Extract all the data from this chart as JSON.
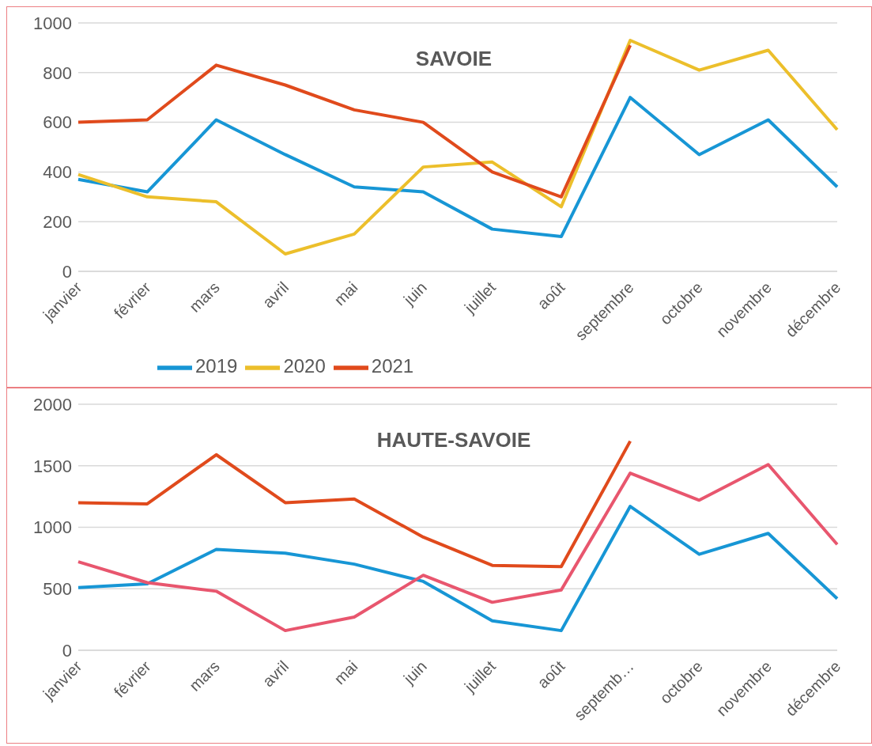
{
  "chart_data": [
    {
      "type": "line",
      "title": "SAVOIE",
      "categories": [
        "janvier",
        "février",
        "mars",
        "avril",
        "mai",
        "juin",
        "juillet",
        "août",
        "septembre",
        "octobre",
        "novembre",
        "décembre"
      ],
      "series": [
        {
          "name": "2019",
          "color": "#1796d5",
          "values": [
            370,
            320,
            610,
            470,
            340,
            320,
            170,
            140,
            700,
            470,
            610,
            340
          ]
        },
        {
          "name": "2020",
          "color": "#ecbf2b",
          "values": [
            390,
            300,
            280,
            70,
            150,
            420,
            440,
            260,
            930,
            810,
            890,
            570
          ]
        },
        {
          "name": "2021",
          "color": "#e04a1c",
          "values": [
            600,
            610,
            830,
            750,
            650,
            600,
            400,
            300,
            910,
            null,
            null,
            null
          ]
        }
      ],
      "ylim": [
        0,
        1000
      ],
      "yticks": [
        0,
        200,
        400,
        600,
        800,
        1000
      ],
      "grid": "y",
      "legend": "bottom"
    },
    {
      "type": "line",
      "title": "HAUTE-SAVOIE",
      "categories": [
        "janvier",
        "février",
        "mars",
        "avril",
        "mai",
        "juin",
        "juillet",
        "août",
        "septemb…",
        "octobre",
        "novembre",
        "décembre"
      ],
      "series": [
        {
          "color": "#1796d5",
          "values": [
            510,
            540,
            820,
            790,
            700,
            560,
            240,
            160,
            1170,
            780,
            950,
            420
          ]
        },
        {
          "color": "#e8566e",
          "values": [
            720,
            550,
            480,
            160,
            270,
            610,
            390,
            490,
            1440,
            1220,
            1510,
            860
          ]
        },
        {
          "color": "#e04a1c",
          "values": [
            1200,
            1190,
            1590,
            1200,
            1230,
            920,
            690,
            680,
            1700,
            null,
            null,
            null
          ]
        }
      ],
      "ylim": [
        0,
        2000
      ],
      "yticks": [
        0,
        500,
        1000,
        1500,
        2000
      ],
      "grid": "y",
      "legend": false
    }
  ]
}
